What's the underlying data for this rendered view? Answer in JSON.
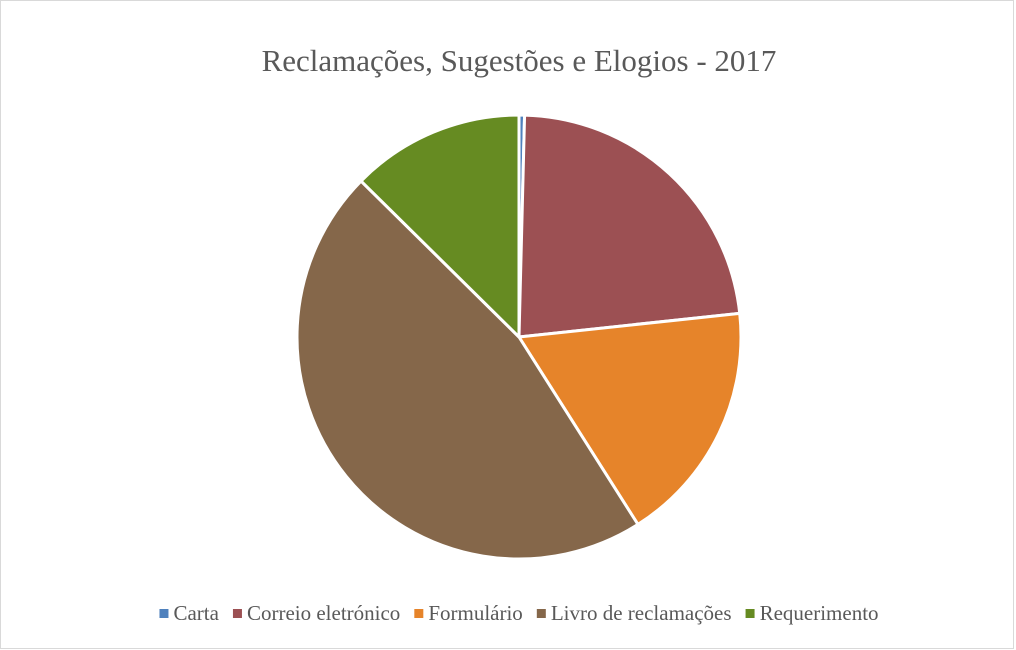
{
  "chart_data": {
    "type": "pie",
    "title": "Reclamações, Sugestões e Elogios - 2017",
    "categories": [
      "Carta",
      "Correio eletrónico",
      "Formulário",
      "Livro de reclamações",
      "Requerimento"
    ],
    "values": [
      0.4,
      22.9,
      17.7,
      46.4,
      12.6
    ],
    "colors": [
      "#4f81bd",
      "#9c5053",
      "#e6842a",
      "#85674a",
      "#668b22"
    ],
    "legend": "bottom"
  }
}
